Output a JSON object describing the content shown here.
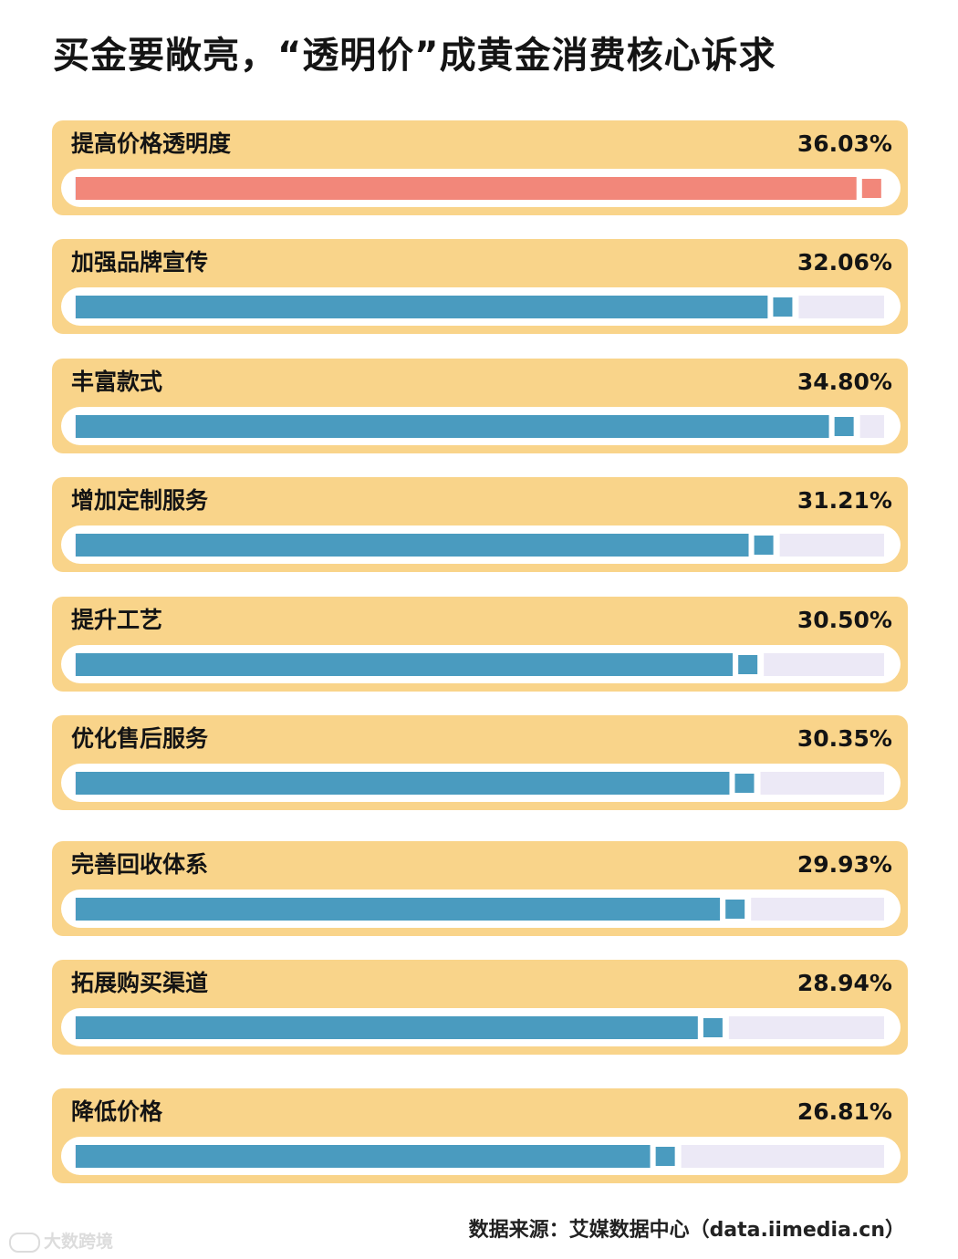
{
  "chart_data": {
    "type": "bar",
    "title": "买金要敞亮，“透明价”成黄金消费核心诉求",
    "categories": [
      "提高价格透明度",
      "加强品牌宣传",
      "丰富款式",
      "增加定制服务",
      "提升工艺",
      "优化售后服务",
      "完善回收体系",
      "拓展购买渠道",
      "降低价格"
    ],
    "values": [
      36.03,
      32.06,
      34.8,
      31.21,
      30.5,
      30.35,
      29.93,
      28.94,
      26.81
    ],
    "value_labels": [
      "36.03%",
      "32.06%",
      "34.80%",
      "31.21%",
      "30.50%",
      "30.35%",
      "29.93%",
      "28.94%",
      "26.81%"
    ],
    "unit": "%",
    "highlight_index": 0,
    "orientation": "horizontal",
    "legend": "none",
    "grid": false
  },
  "colors": {
    "card": "#f9d48a",
    "track_outer": "#ffffff",
    "track_inner": "#ece9f6",
    "bar": "#4a9bbf",
    "bar_highlight": "#f2877a",
    "text": "#141414"
  },
  "source": "数据来源：艾媒数据中心（data.iimedia.cn）",
  "watermark": "大数跨境"
}
